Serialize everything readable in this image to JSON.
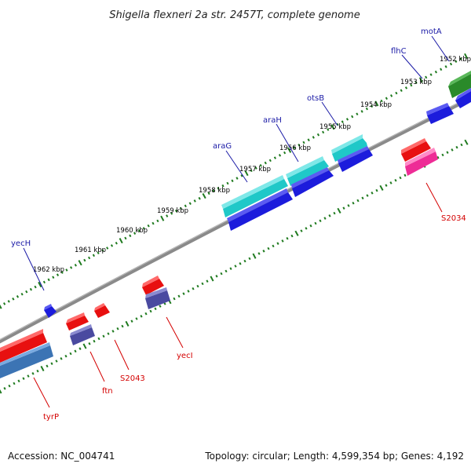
{
  "title": "Shigella flexneri 2a str. 2457T, complete genome",
  "footer": {
    "accession": "Accession: NC_004741",
    "summary": "Topology: circular; Length: 4,599,354 bp; Genes: 4,192"
  },
  "colors": {
    "backbone": "#8a8a8a",
    "tick": "#1e7a1e",
    "label_blue": "#1a1aa6",
    "label_red": "#d40000",
    "cyan": "#1fc8c8",
    "blue": "#1c1cdc",
    "green": "#2a8a2a",
    "red": "#e81010",
    "pink": "#ee2c96",
    "slate": "#4a4aa0",
    "steel": "#3c74b4"
  },
  "kbp_labels": [
    "1952 kbp",
    "1953 kbp",
    "1954 kbp",
    "1955 kbp",
    "1956 kbp",
    "1957 kbp",
    "1958 kbp",
    "1959 kbp",
    "1960 kbp",
    "1961 kbp",
    "1962 kbp"
  ],
  "genes_forward": [
    "motA",
    "flhC",
    "otsB",
    "araH",
    "araG",
    "yecH"
  ],
  "genes_reverse": [
    "S2034",
    "yecI",
    "S2043",
    "ftn",
    "tyrP"
  ]
}
